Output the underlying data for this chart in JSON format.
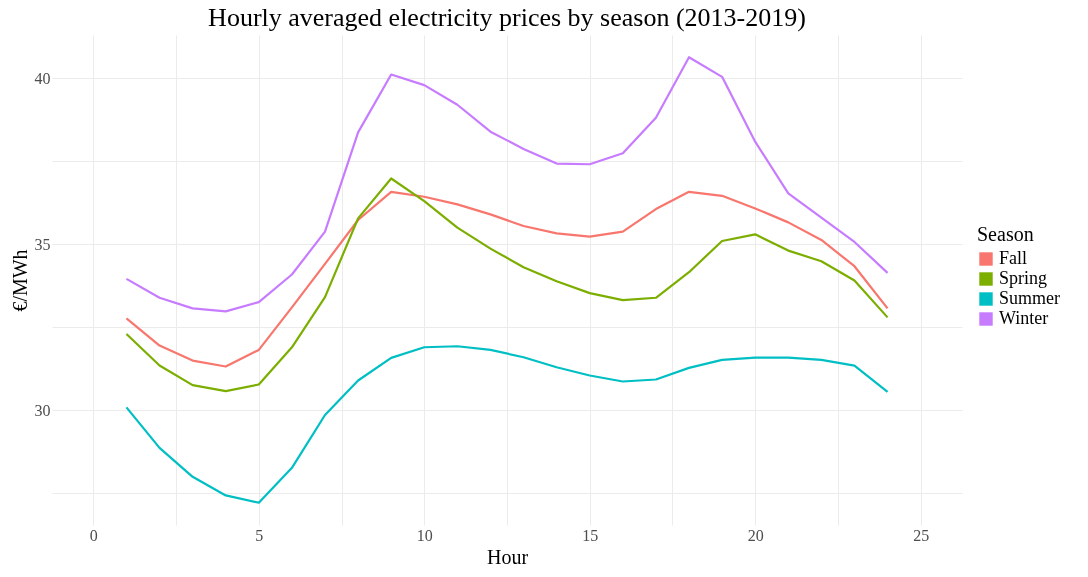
{
  "chart_data": {
    "type": "line",
    "title": "Hourly averaged electricity prices by season (2013-2019)",
    "xlabel": "Hour",
    "ylabel": "€/MWh",
    "legend_title": "Season",
    "legend": "right",
    "grid": true,
    "x": [
      1,
      2,
      3,
      4,
      5,
      6,
      7,
      8,
      9,
      10,
      11,
      12,
      13,
      14,
      15,
      16,
      17,
      18,
      19,
      20,
      21,
      22,
      23,
      24
    ],
    "xlim": [
      -1.25,
      26.25
    ],
    "xticks": [
      0,
      {
        "value": 2.5,
        "label": null
      },
      5,
      {
        "value": 7.5,
        "label": null
      },
      10,
      {
        "value": 12.5,
        "label": null
      },
      15,
      {
        "value": 17.5,
        "label": null
      },
      20,
      {
        "value": 22.5,
        "label": null
      },
      25
    ],
    "ylim": [
      26.55,
      41.3
    ],
    "yticks": [
      {
        "value": 27.5,
        "label": null
      },
      30,
      {
        "value": 32.5,
        "label": null
      },
      35,
      {
        "value": 37.5,
        "label": null
      },
      40
    ],
    "series": [
      {
        "name": "Fall",
        "color": "#f8766d",
        "values": [
          32.77,
          31.95,
          31.5,
          31.32,
          31.82,
          33.1,
          34.41,
          35.73,
          36.58,
          36.43,
          36.2,
          35.9,
          35.55,
          35.33,
          35.23,
          35.38,
          36.06,
          36.58,
          36.46,
          36.08,
          35.66,
          35.13,
          34.34,
          33.07
        ]
      },
      {
        "name": "Spring",
        "color": "#7cae00",
        "values": [
          32.3,
          31.35,
          30.76,
          30.58,
          30.78,
          31.9,
          33.41,
          35.78,
          36.98,
          36.3,
          35.5,
          34.87,
          34.31,
          33.89,
          33.53,
          33.32,
          33.39,
          34.16,
          35.1,
          35.3,
          34.81,
          34.49,
          33.91,
          32.8
        ]
      },
      {
        "name": "Summer",
        "color": "#00bfc4",
        "values": [
          30.09,
          28.87,
          28.0,
          27.44,
          27.22,
          28.27,
          29.86,
          30.9,
          31.58,
          31.9,
          31.93,
          31.82,
          31.6,
          31.3,
          31.05,
          30.87,
          30.93,
          31.28,
          31.52,
          31.59,
          31.59,
          31.52,
          31.35,
          30.56
        ]
      },
      {
        "name": "Winter",
        "color": "#c77cff",
        "values": [
          33.96,
          33.39,
          33.07,
          32.98,
          33.26,
          34.09,
          35.38,
          38.37,
          40.11,
          39.79,
          39.2,
          38.39,
          37.87,
          37.43,
          37.41,
          37.74,
          38.81,
          40.63,
          40.04,
          38.09,
          36.53,
          35.8,
          35.07,
          34.14
        ]
      }
    ]
  }
}
